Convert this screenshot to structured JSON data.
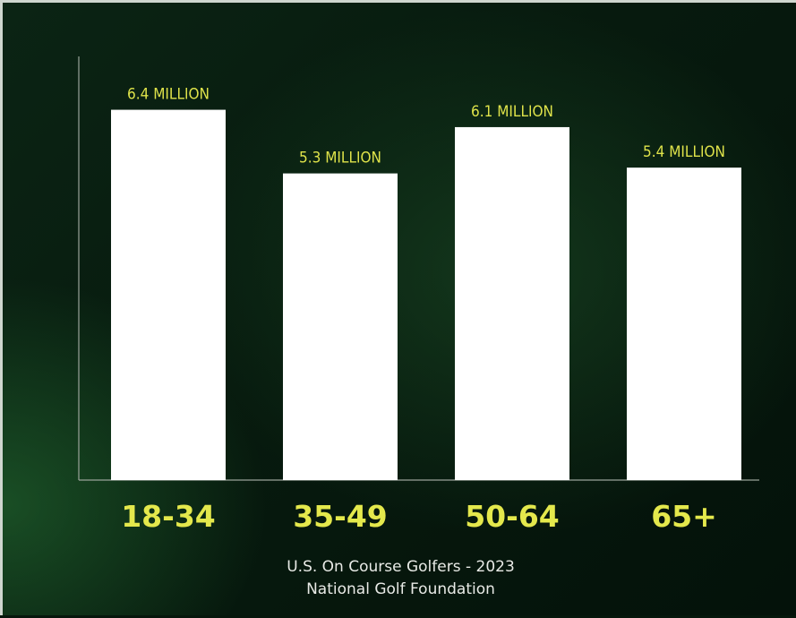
{
  "chart_data": {
    "type": "bar",
    "categories": [
      "18-34",
      "35-49",
      "50-64",
      "65+"
    ],
    "values": [
      6.4,
      5.3,
      6.1,
      5.4
    ],
    "data_labels": [
      "6.4 MILLION",
      "5.3 MILLION",
      "6.1 MILLION",
      "5.4 MILLION"
    ],
    "title": "",
    "xlabel": "",
    "ylabel": "",
    "ylim": [
      0,
      7
    ],
    "grid": false,
    "legend": "none",
    "colors": {
      "bar": "#ffffff",
      "labels": "#e4e84c",
      "background": "#06170c"
    }
  },
  "footer": {
    "line1": "U.S. On Course Golfers - 2023",
    "line2": "National Golf Foundation"
  }
}
